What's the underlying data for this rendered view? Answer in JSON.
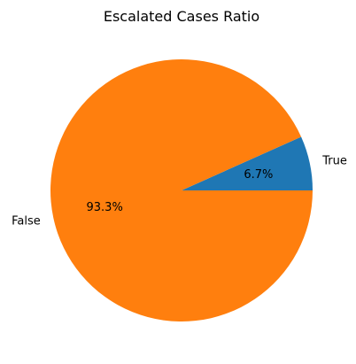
{
  "chart_data": {
    "type": "pie",
    "title": "Escalated Cases Ratio",
    "categories": [
      "True",
      "False"
    ],
    "values": [
      6.7,
      93.3
    ],
    "percent_labels": [
      "6.7%",
      "93.3%"
    ],
    "colors": [
      "#1f77b4",
      "#ff7f0e"
    ],
    "start_angle_deg": 0,
    "direction": "counterclockwise"
  }
}
